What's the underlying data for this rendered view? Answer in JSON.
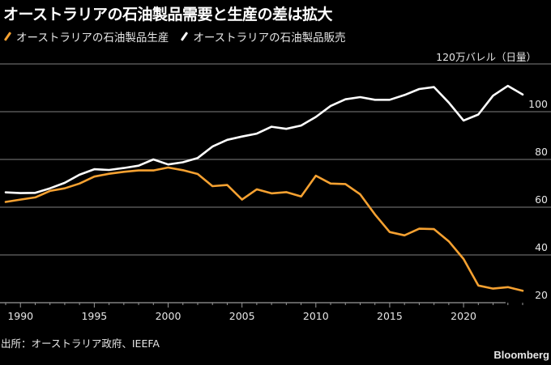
{
  "header": {
    "title": "オーストラリアの石油製品需要と生産の差は拡大",
    "unit_label": "120万バレル（日量）"
  },
  "legend": [
    {
      "label": "オーストラリアの石油製品生産",
      "color": "#f5a131"
    },
    {
      "label": "オーストラリアの石油製品販売",
      "color": "#ffffff"
    }
  ],
  "footer": {
    "source": "出所：オーストラリア政府、IEEFA",
    "brand": "Bloomberg"
  },
  "chart_data": {
    "type": "line",
    "title": "オーストラリアの石油製品需要と生産の差は拡大",
    "xlabel": "",
    "ylabel": "120万バレル（日量）",
    "x": [
      1989,
      1990,
      1991,
      1992,
      1993,
      1994,
      1995,
      1996,
      1997,
      1998,
      1999,
      2000,
      2001,
      2002,
      2003,
      2004,
      2005,
      2006,
      2007,
      2008,
      2009,
      2010,
      2011,
      2012,
      2013,
      2014,
      2015,
      2016,
      2017,
      2018,
      2019,
      2020,
      2021,
      2022,
      2023,
      2024
    ],
    "series": [
      {
        "name": "オーストラリアの石油製品生産",
        "color": "#f5a131",
        "values": [
          62.2,
          63.2,
          64.1,
          66.8,
          67.9,
          69.9,
          72.8,
          74.0,
          74.8,
          75.4,
          75.4,
          76.6,
          75.5,
          73.9,
          68.8,
          69.3,
          63.2,
          67.5,
          65.8,
          66.3,
          64.5,
          73.2,
          69.9,
          69.7,
          65.4,
          57.0,
          49.6,
          48.2,
          51.0,
          50.8,
          45.7,
          38.3,
          27.2,
          25.9,
          26.5,
          25.0
        ]
      },
      {
        "name": "オーストラリアの石油製品販売",
        "color": "#ffffff",
        "values": [
          66.2,
          65.9,
          66.0,
          67.9,
          70.2,
          73.6,
          75.9,
          75.6,
          76.4,
          77.4,
          80.0,
          77.9,
          78.8,
          80.6,
          85.4,
          88.2,
          89.6,
          90.8,
          93.7,
          92.8,
          94.2,
          97.8,
          102.4,
          105.2,
          106.1,
          105.0,
          105.0,
          107.0,
          109.5,
          110.3,
          103.8,
          96.3,
          98.8,
          106.7,
          110.8,
          107.2
        ]
      }
    ],
    "xticks": [
      1990,
      1995,
      2000,
      2005,
      2010,
      2015,
      2020
    ],
    "xtick_labels": [
      "1990",
      "1995",
      "2000",
      "2005",
      "2010",
      "2015",
      "2020"
    ],
    "yticks": [
      20,
      40,
      60,
      80,
      100,
      120
    ],
    "ytick_labels": [
      "20",
      "40",
      "60",
      "80",
      "100",
      ""
    ],
    "xlim": [
      1989,
      2024
    ],
    "ylim": [
      20,
      120
    ],
    "grid": true,
    "y_axis_side": "right",
    "legend_position": "top-left"
  }
}
